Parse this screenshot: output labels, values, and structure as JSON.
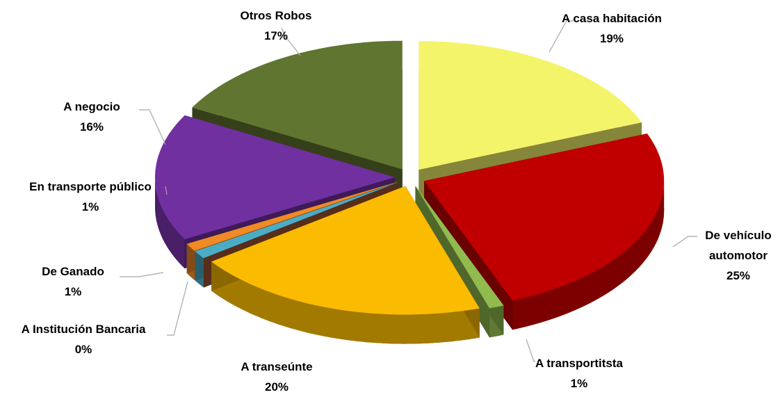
{
  "chart_data": {
    "type": "pie",
    "categories": [
      "A casa habitación",
      "De vehículo automotor",
      "A transportitsta",
      "A transeúnte",
      "A Institución Bancaria",
      "De Ganado",
      "En transporte público",
      "A negocio",
      "Otros Robos"
    ],
    "values": [
      19,
      25,
      1,
      20,
      0,
      1,
      1,
      16,
      17
    ],
    "value_labels": [
      "19%",
      "25%",
      "1%",
      "20%",
      "0%",
      "1%",
      "1%",
      "16%",
      "17%"
    ],
    "colors": [
      "#f4f46a",
      "#c00000",
      "#92bb4f",
      "#fbbb00",
      "#a0522d",
      "#4bacc6",
      "#f08a24",
      "#7030a0",
      "#607530"
    ]
  }
}
